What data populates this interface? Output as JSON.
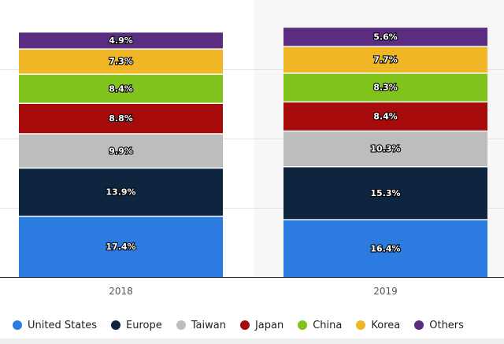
{
  "chart_data": {
    "type": "bar",
    "stacked": true,
    "categories": [
      "2018",
      "2019"
    ],
    "ylim": [
      0,
      80
    ],
    "grid": true,
    "legend_position": "bottom",
    "series": [
      {
        "name": "United States",
        "color": "#2b7be0",
        "values": [
          17.4,
          16.4
        ],
        "labels": [
          "17.4%",
          "16.4%"
        ]
      },
      {
        "name": "Europe",
        "color": "#0e2540",
        "values": [
          13.9,
          15.3
        ],
        "labels": [
          "13.9%",
          "15.3%"
        ]
      },
      {
        "name": "Taiwan",
        "color": "#bdbdbd",
        "values": [
          9.9,
          10.3
        ],
        "labels": [
          "9.9%",
          "10.3%"
        ]
      },
      {
        "name": "Japan",
        "color": "#a80b0b",
        "values": [
          8.8,
          8.4
        ],
        "labels": [
          "8.8%",
          "8.4%"
        ]
      },
      {
        "name": "China",
        "color": "#7fc31c",
        "values": [
          8.4,
          8.3
        ],
        "labels": [
          "8.4%",
          "8.3%"
        ]
      },
      {
        "name": "Korea",
        "color": "#f0b625",
        "values": [
          7.3,
          7.7
        ],
        "labels": [
          "7.3%",
          "7.7%"
        ]
      },
      {
        "name": "Others",
        "color": "#5a2d82",
        "values": [
          4.9,
          5.6
        ],
        "labels": [
          "4.9%",
          "5.6%"
        ]
      }
    ]
  }
}
